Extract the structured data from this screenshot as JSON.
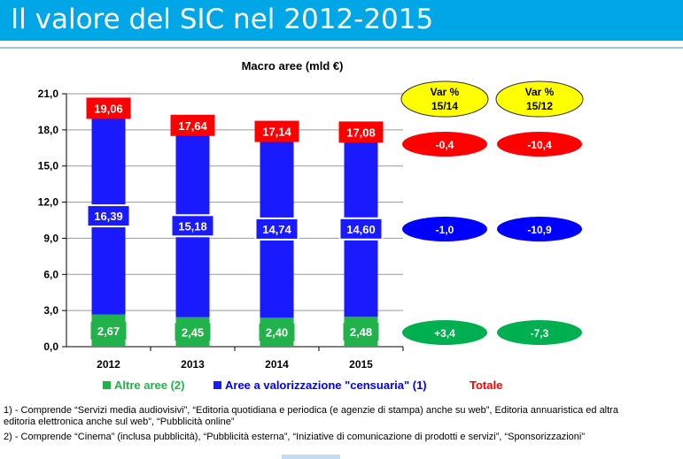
{
  "page": {
    "title": "Il valore del SIC nel 2012-2015"
  },
  "chart_data": {
    "type": "bar",
    "stacked": true,
    "title": "Macro aree (mld €)",
    "categories": [
      "2012",
      "2013",
      "2014",
      "2015"
    ],
    "ylim": [
      0,
      21
    ],
    "yticks": [
      "0,0",
      "3,0",
      "6,0",
      "9,0",
      "12,0",
      "15,0",
      "18,0",
      "21,0"
    ],
    "grid": true,
    "series": [
      {
        "name": "Altre aree (2)",
        "color": "#22b24c",
        "values": [
          2.67,
          2.45,
          2.4,
          2.48
        ],
        "labels": [
          "2,67",
          "2,45",
          "2,40",
          "2,48"
        ]
      },
      {
        "name": "Aree a valorizzazione \"censuaria\" (1)",
        "color": "#1a1aff",
        "values": [
          16.39,
          15.18,
          14.74,
          14.6
        ],
        "labels": [
          "16,39",
          "15,18",
          "14,74",
          "14,60"
        ]
      }
    ],
    "totals": {
      "name": "Totale",
      "color": "#ff0000",
      "values": [
        19.06,
        17.64,
        17.14,
        17.08
      ],
      "labels": [
        "19,06",
        "17,64",
        "17,14",
        "17,08"
      ]
    },
    "variations": {
      "headers": [
        {
          "line1": "Var %",
          "line2": "15/14"
        },
        {
          "line1": "Var %",
          "line2": "15/12"
        }
      ],
      "header_color": "#ffff00",
      "rows": [
        {
          "series": "Totale",
          "color": "#ff0000",
          "values": [
            "-0,4",
            "-10,4"
          ]
        },
        {
          "series": "Aree a valorizzazione \"censuaria\" (1)",
          "color": "#0000ff",
          "values": [
            "-1,0",
            "-10,9"
          ]
        },
        {
          "series": "Altre aree (2)",
          "color": "#00b050",
          "values": [
            "+3,4",
            "-7,3"
          ]
        }
      ]
    },
    "legend_position": "bottom"
  },
  "footnotes": {
    "fn1": "1) - Comprende “Servizi media audiovisivi”, “Editoria quotidiana e periodica (e agenzie di stampa) anche su web”, Editoria annuaristica ed altra editoria elettronica anche sul web”, “Pubblicità online”",
    "fn2": "2) - Comprende “Cinema” (inclusa pubblicità), “Pubblicità esterna”, “Iniziative di comunicazione di prodotti e servizi”, “Sponsorizzazioni”"
  }
}
